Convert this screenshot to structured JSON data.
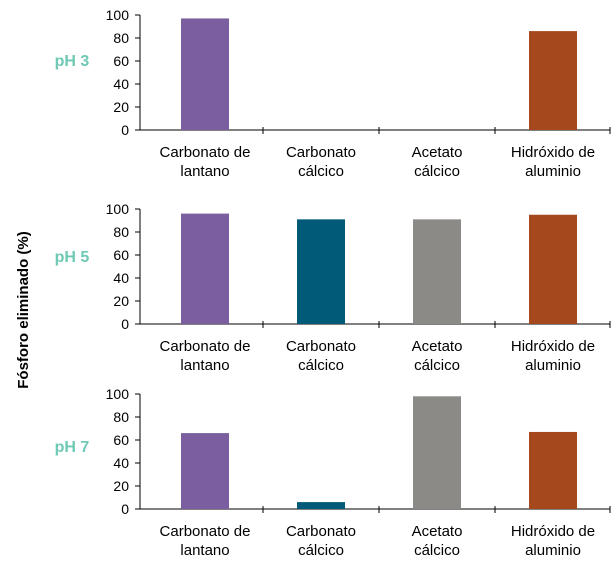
{
  "chart_data": {
    "type": "bar",
    "ylabel": "Fósforo eliminado (%)",
    "categories": [
      [
        "Carbonato de",
        "lantano"
      ],
      [
        "Carbonato",
        "cálcico"
      ],
      [
        "Acetato",
        "cálcico"
      ],
      [
        "Hidróxido de",
        "aluminio"
      ]
    ],
    "colors": [
      "#7b5ea0",
      "#005a78",
      "#8c8a87",
      "#a5481d"
    ],
    "ph_label_color": "#6ec9b5",
    "ylim": [
      0,
      100
    ],
    "yticks": [
      "0",
      "20",
      "40",
      "60",
      "80",
      "100"
    ],
    "grid": false,
    "panels": [
      {
        "label": "pH 3",
        "values": [
          97,
          0,
          0,
          86
        ]
      },
      {
        "label": "pH 5",
        "values": [
          96,
          91,
          91,
          95
        ]
      },
      {
        "label": "pH 7",
        "values": [
          66,
          6,
          98,
          67
        ]
      }
    ]
  }
}
